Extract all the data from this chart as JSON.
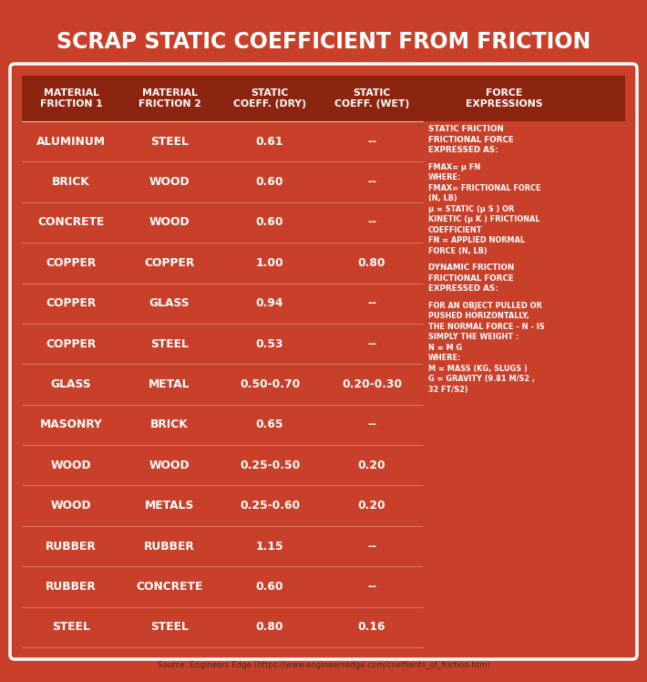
{
  "title": "SCRAP STATIC COEFFICIENT FROM FRICTION",
  "bg_color": "#C8402A",
  "white": "#FFFFFF",
  "header_bg": "#8B2510",
  "source_text": "Source: Engineers Edge (https://www.engineersedge.com/coeffients_of_friction.htm)",
  "columns": [
    "MATERIAL\nFRICTION 1",
    "MATERIAL\nFRICTION 2",
    "STATIC\nCOEFF. (DRY)",
    "STATIC\nCOEFF. (WET)",
    "FORCE\nEXPRESSIONS"
  ],
  "rows": [
    [
      "ALUMINUM",
      "STEEL",
      "0.61",
      "--"
    ],
    [
      "BRICK",
      "WOOD",
      "0.60",
      "--"
    ],
    [
      "CONCRETE",
      "WOOD",
      "0.60",
      "--"
    ],
    [
      "COPPER",
      "COPPER",
      "1.00",
      "0.80"
    ],
    [
      "COPPER",
      "GLASS",
      "0.94",
      "--"
    ],
    [
      "COPPER",
      "STEEL",
      "0.53",
      "--"
    ],
    [
      "GLASS",
      "METAL",
      "0.50-0.70",
      "0.20-0.30"
    ],
    [
      "MASONRY",
      "BRICK",
      "0.65",
      "--"
    ],
    [
      "WOOD",
      "WOOD",
      "0.25-0.50",
      "0.20"
    ],
    [
      "WOOD",
      "METALS",
      "0.25-0.60",
      "0.20"
    ],
    [
      "RUBBER",
      "RUBBER",
      "1.15",
      "--"
    ],
    [
      "RUBBER",
      "CONCRETE",
      "0.60",
      "--"
    ],
    [
      "STEEL",
      "STEEL",
      "0.80",
      "0.16"
    ]
  ],
  "force_expr_lines": [
    "STATIC FRICTION",
    "FRICTIONAL FORCE",
    "EXPRESSED AS:",
    "",
    "FMAX= μ FN",
    "WHERE:",
    "FMAX= FRICTIONAL FORCE",
    "(N, LB)",
    "μ = STATIC (μ S ) OR",
    "KINETIC (μ K ) FRICTIONAL",
    "COEFFICIENT",
    "FN = APPLIED NORMAL",
    "FORCE (N, LB)",
    "",
    "DYNAMIC FRICTION",
    "FRICTIONAL FORCE",
    "EXPRESSED AS:",
    "",
    "FOR AN OBJECT PULLED OR",
    "PUSHED HORIZONTALLY,",
    "THE NORMAL FORCE - N - IS",
    "SIMPLY THE WEIGHT :",
    "N = M G",
    "WHERE:",
    "M = MASS (KG, SLUGS )",
    "G = GRAVITY (9.81 M/S2 ,",
    "32 FT/S2)"
  ],
  "fig_width": 7.1,
  "fig_height": 7.48,
  "dpi": 100
}
